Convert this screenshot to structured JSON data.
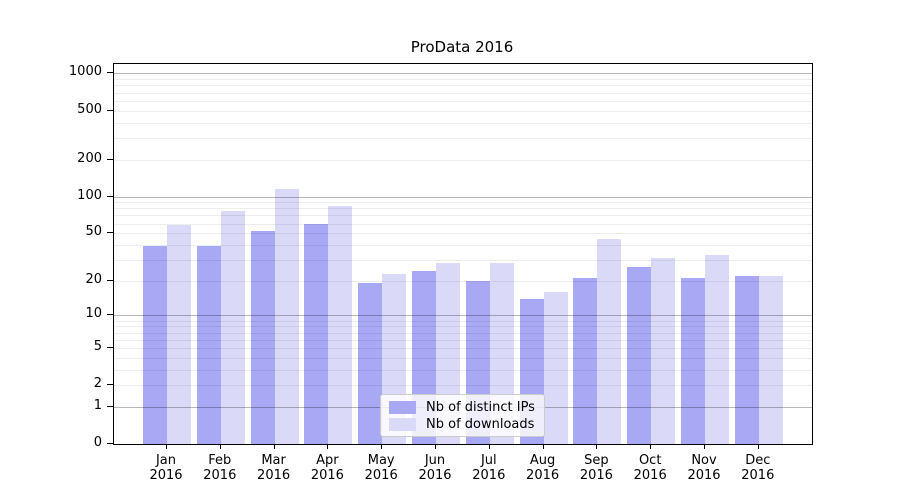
{
  "window": {
    "background": "#ffffff"
  },
  "chart_data": {
    "type": "bar",
    "title": "ProData 2016",
    "categories": [
      "Jan",
      "Feb",
      "Mar",
      "Apr",
      "May",
      "Jun",
      "Jul",
      "Aug",
      "Sep",
      "Oct",
      "Nov",
      "Dec"
    ],
    "category_year": "2016",
    "series": [
      {
        "name": "Nb of distinct IPs",
        "color": "#a8a8f5",
        "values": [
          39,
          39,
          52,
          59,
          19,
          24,
          20,
          14,
          21,
          26,
          21,
          22
        ]
      },
      {
        "name": "Nb of downloads",
        "color": "#dadaf8",
        "values": [
          58,
          76,
          116,
          84,
          23,
          28,
          28,
          16,
          45,
          31,
          33,
          22
        ]
      }
    ],
    "xlabel": "",
    "ylabel": "",
    "y_scale": "log1p",
    "y_ticks": [
      0,
      1,
      2,
      5,
      10,
      20,
      50,
      100,
      200,
      500,
      1000
    ],
    "y_major_gridlines": [
      1,
      10,
      100,
      1000
    ],
    "y_minor_gridlines": [
      2,
      3,
      4,
      5,
      6,
      7,
      8,
      9,
      20,
      30,
      40,
      50,
      60,
      70,
      80,
      90,
      200,
      300,
      400,
      500,
      600,
      700,
      800,
      900
    ],
    "ylim": [
      0,
      1290
    ],
    "grid": true,
    "legend_position": "lower center"
  },
  "colors": {
    "grid_major": "rgba(0,0,0,0.28)",
    "grid_minor": "rgba(0,0,0,0.07)",
    "axis": "#000000",
    "text": "#000000",
    "legend_border": "#cccccc"
  }
}
